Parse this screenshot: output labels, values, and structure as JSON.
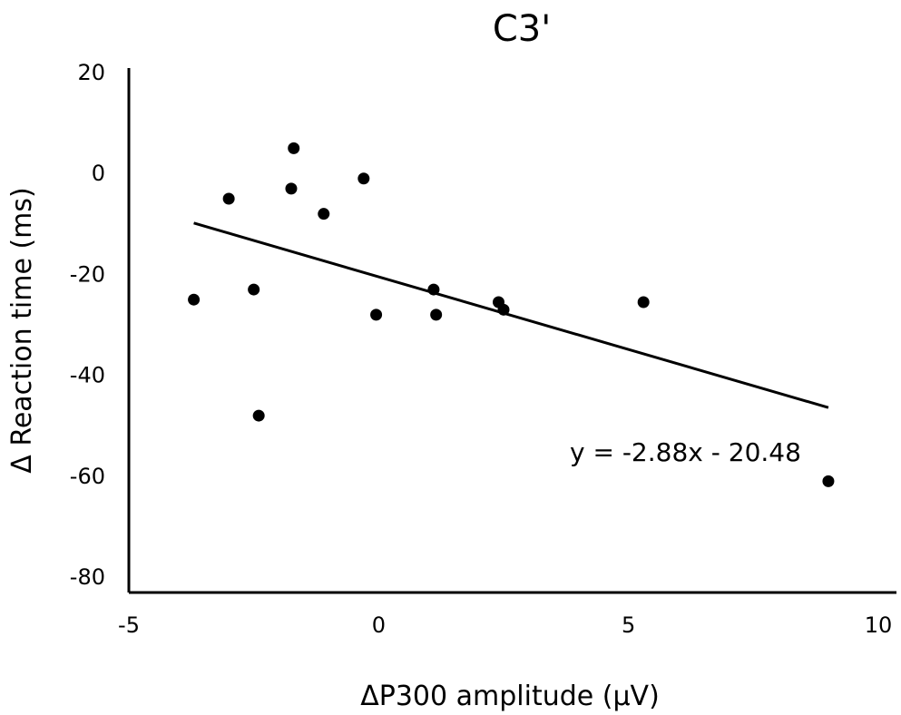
{
  "chart_data": {
    "type": "scatter",
    "title": "C3'",
    "xlabel": "ΔP300 amplitude  (μV)",
    "ylabel": "Δ Reaction time (ms)",
    "xlim": [
      -5,
      10
    ],
    "ylim": [
      -80,
      20
    ],
    "xticks": [
      -5,
      0,
      5,
      10
    ],
    "yticks": [
      20,
      0,
      -20,
      -40,
      -60,
      -80
    ],
    "grid": false,
    "series": [
      {
        "points": [
          {
            "x": -3.7,
            "y": -25
          },
          {
            "x": -3.0,
            "y": -5
          },
          {
            "x": -2.5,
            "y": -23
          },
          {
            "x": -2.4,
            "y": -48
          },
          {
            "x": -1.75,
            "y": -3
          },
          {
            "x": -1.7,
            "y": 5
          },
          {
            "x": -1.1,
            "y": -8
          },
          {
            "x": -0.3,
            "y": -1
          },
          {
            "x": -0.05,
            "y": -28
          },
          {
            "x": 1.1,
            "y": -23
          },
          {
            "x": 1.15,
            "y": -28
          },
          {
            "x": 2.4,
            "y": -25.5
          },
          {
            "x": 2.5,
            "y": -27
          },
          {
            "x": 5.3,
            "y": -25.5
          },
          {
            "x": 9.0,
            "y": -61
          }
        ]
      }
    ],
    "trendline": {
      "slope": -2.88,
      "intercept": -20.48,
      "x_range": [
        -3.7,
        9.0
      ],
      "label": "y = -2.88x - 20.48"
    },
    "colors": {
      "points": "#000000",
      "axes": "#000000",
      "trendline": "#000000"
    }
  }
}
